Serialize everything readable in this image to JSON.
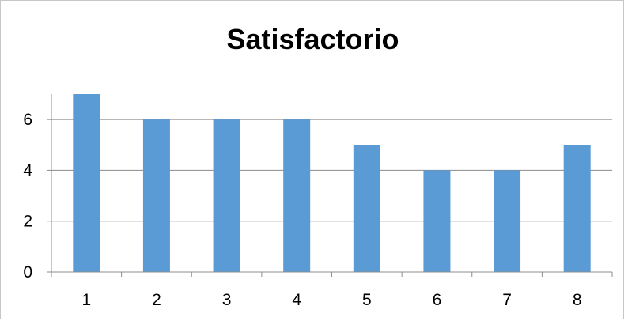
{
  "chart_data": {
    "type": "bar",
    "title": "Satisfactorio",
    "categories": [
      "1",
      "2",
      "3",
      "4",
      "5",
      "6",
      "7",
      "8"
    ],
    "values": [
      7,
      6,
      6,
      6,
      5,
      4,
      4,
      5
    ],
    "ylim": [
      0,
      7
    ],
    "yticks": [
      0,
      2,
      4,
      6
    ],
    "grid": true,
    "legend": "none",
    "bar_color": "#5b9bd5",
    "grid_color": "#8c8c8c"
  }
}
